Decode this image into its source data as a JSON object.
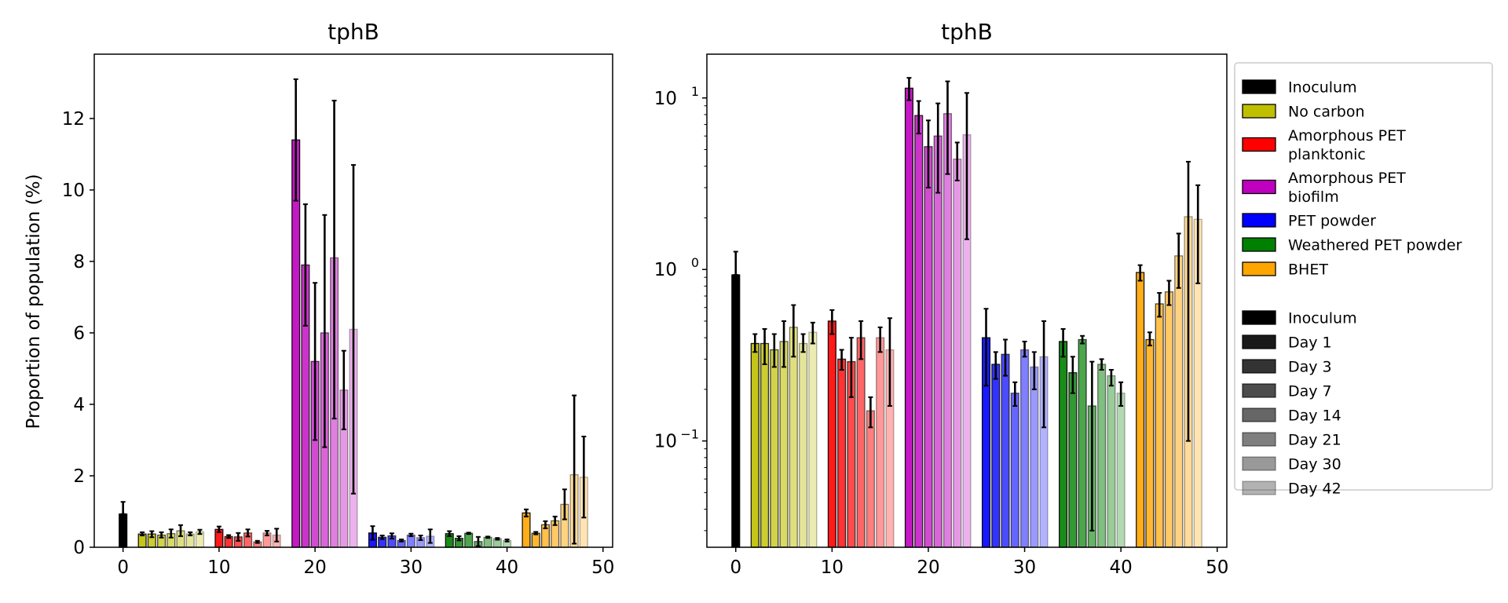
{
  "chart_data": [
    {
      "type": "bar",
      "title": "tphB",
      "xlabel": "",
      "ylabel": "Proportion of population (%)",
      "yscale": "linear",
      "xlim": [
        -3,
        51
      ],
      "ylim": [
        0,
        13.8
      ],
      "xticks": [
        0,
        10,
        20,
        30,
        40,
        50
      ],
      "xtick_labels": [
        "0",
        "10",
        "20",
        "30",
        "40",
        "50"
      ],
      "yticks": [
        0,
        2,
        4,
        6,
        8,
        10,
        12
      ],
      "ytick_labels": [
        "0",
        "2",
        "4",
        "6",
        "8",
        "10",
        "12"
      ]
    },
    {
      "type": "bar",
      "title": "tphB",
      "xlabel": "",
      "ylabel": "",
      "yscale": "log",
      "xlim": [
        -3,
        51
      ],
      "ylim": [
        0.024,
        18
      ],
      "xticks": [
        0,
        10,
        20,
        30,
        40,
        50
      ],
      "xtick_labels": [
        "0",
        "10",
        "20",
        "30",
        "40",
        "50"
      ],
      "yticks": [
        0.1,
        1,
        10
      ],
      "ytick_labels": [
        "10",
        "10",
        "10"
      ],
      "ytick_exponents": [
        "−1",
        "0",
        "1"
      ]
    }
  ],
  "series": [
    {
      "name": "Inoculum",
      "color": "#000000",
      "bars": [
        {
          "x": 0,
          "value": 0.93,
          "err_low": 0.93,
          "err_high": 1.27,
          "day": "Inoculum"
        }
      ]
    },
    {
      "name": "No carbon",
      "color": "#bfbf00",
      "bars": [
        {
          "x": 2,
          "value": 0.37,
          "err_low": 0.33,
          "err_high": 0.42,
          "day": "Day 1"
        },
        {
          "x": 3,
          "value": 0.37,
          "err_low": 0.28,
          "err_high": 0.45,
          "day": "Day 3"
        },
        {
          "x": 4,
          "value": 0.34,
          "err_low": 0.27,
          "err_high": 0.42,
          "day": "Day 7"
        },
        {
          "x": 5,
          "value": 0.38,
          "err_low": 0.27,
          "err_high": 0.5,
          "day": "Day 14"
        },
        {
          "x": 6,
          "value": 0.46,
          "err_low": 0.31,
          "err_high": 0.62,
          "day": "Day 21"
        },
        {
          "x": 7,
          "value": 0.37,
          "err_low": 0.33,
          "err_high": 0.42,
          "day": "Day 30"
        },
        {
          "x": 8,
          "value": 0.43,
          "err_low": 0.37,
          "err_high": 0.49,
          "day": "Day 42"
        }
      ]
    },
    {
      "name": "Amorphous PET planktonic",
      "color": "#ff0000",
      "bars": [
        {
          "x": 10,
          "value": 0.5,
          "err_low": 0.42,
          "err_high": 0.58,
          "day": "Day 1"
        },
        {
          "x": 11,
          "value": 0.3,
          "err_low": 0.26,
          "err_high": 0.34,
          "day": "Day 3"
        },
        {
          "x": 12,
          "value": 0.29,
          "err_low": 0.18,
          "err_high": 0.4,
          "day": "Day 7"
        },
        {
          "x": 13,
          "value": 0.4,
          "err_low": 0.3,
          "err_high": 0.5,
          "day": "Day 14"
        },
        {
          "x": 14,
          "value": 0.15,
          "err_low": 0.12,
          "err_high": 0.18,
          "day": "Day 21"
        },
        {
          "x": 15,
          "value": 0.4,
          "err_low": 0.33,
          "err_high": 0.46,
          "day": "Day 30"
        },
        {
          "x": 16,
          "value": 0.34,
          "err_low": 0.16,
          "err_high": 0.52,
          "day": "Day 42"
        }
      ]
    },
    {
      "name": "Amorphous PET biofilm",
      "color": "#bf00bf",
      "bars": [
        {
          "x": 18,
          "value": 11.4,
          "err_low": 9.7,
          "err_high": 13.1,
          "day": "Day 1"
        },
        {
          "x": 19,
          "value": 7.9,
          "err_low": 6.2,
          "err_high": 9.6,
          "day": "Day 3"
        },
        {
          "x": 20,
          "value": 5.2,
          "err_low": 3.0,
          "err_high": 7.4,
          "day": "Day 7"
        },
        {
          "x": 21,
          "value": 6.0,
          "err_low": 2.8,
          "err_high": 9.3,
          "day": "Day 14"
        },
        {
          "x": 22,
          "value": 8.1,
          "err_low": 3.6,
          "err_high": 12.5,
          "day": "Day 21"
        },
        {
          "x": 23,
          "value": 4.4,
          "err_low": 3.3,
          "err_high": 5.5,
          "day": "Day 30"
        },
        {
          "x": 24,
          "value": 6.1,
          "err_low": 1.5,
          "err_high": 10.7,
          "day": "Day 42"
        }
      ]
    },
    {
      "name": "PET powder",
      "color": "#0000ff",
      "bars": [
        {
          "x": 26,
          "value": 0.4,
          "err_low": 0.21,
          "err_high": 0.59,
          "day": "Day 1"
        },
        {
          "x": 27,
          "value": 0.28,
          "err_low": 0.23,
          "err_high": 0.33,
          "day": "Day 3"
        },
        {
          "x": 28,
          "value": 0.32,
          "err_low": 0.24,
          "err_high": 0.39,
          "day": "Day 7"
        },
        {
          "x": 29,
          "value": 0.19,
          "err_low": 0.16,
          "err_high": 0.22,
          "day": "Day 14"
        },
        {
          "x": 30,
          "value": 0.34,
          "err_low": 0.31,
          "err_high": 0.38,
          "day": "Day 21"
        },
        {
          "x": 31,
          "value": 0.27,
          "err_low": 0.2,
          "err_high": 0.33,
          "day": "Day 30"
        },
        {
          "x": 32,
          "value": 0.31,
          "err_low": 0.12,
          "err_high": 0.5,
          "day": "Day 42"
        }
      ]
    },
    {
      "name": "Weathered PET powder",
      "color": "#008000",
      "bars": [
        {
          "x": 34,
          "value": 0.38,
          "err_low": 0.31,
          "err_high": 0.45,
          "day": "Day 1"
        },
        {
          "x": 35,
          "value": 0.25,
          "err_low": 0.19,
          "err_high": 0.31,
          "day": "Day 3"
        },
        {
          "x": 36,
          "value": 0.39,
          "err_low": 0.37,
          "err_high": 0.41,
          "day": "Day 7"
        },
        {
          "x": 37,
          "value": 0.16,
          "err_low": 0.03,
          "err_high": 0.29,
          "day": "Day 14"
        },
        {
          "x": 38,
          "value": 0.28,
          "err_low": 0.26,
          "err_high": 0.3,
          "day": "Day 21"
        },
        {
          "x": 39,
          "value": 0.24,
          "err_low": 0.21,
          "err_high": 0.26,
          "day": "Day 30"
        },
        {
          "x": 40,
          "value": 0.19,
          "err_low": 0.16,
          "err_high": 0.22,
          "day": "Day 42"
        }
      ]
    },
    {
      "name": "BHET",
      "color": "#ffa500",
      "bars": [
        {
          "x": 42,
          "value": 0.96,
          "err_low": 0.86,
          "err_high": 1.06,
          "day": "Day 1"
        },
        {
          "x": 43,
          "value": 0.39,
          "err_low": 0.36,
          "err_high": 0.43,
          "day": "Day 3"
        },
        {
          "x": 44,
          "value": 0.63,
          "err_low": 0.53,
          "err_high": 0.73,
          "day": "Day 7"
        },
        {
          "x": 45,
          "value": 0.74,
          "err_low": 0.62,
          "err_high": 0.86,
          "day": "Day 14"
        },
        {
          "x": 46,
          "value": 1.2,
          "err_low": 0.78,
          "err_high": 1.62,
          "day": "Day 21"
        },
        {
          "x": 47,
          "value": 2.03,
          "err_low": 0.1,
          "err_high": 4.25,
          "day": "Day 30"
        },
        {
          "x": 48,
          "value": 1.96,
          "err_low": 0.83,
          "err_high": 3.1,
          "day": "Day 42"
        }
      ]
    }
  ],
  "legend": {
    "position": "right",
    "groups": [
      {
        "label": "Inoculum",
        "color": "#000000"
      },
      {
        "label": "No carbon",
        "color": "#bfbf00"
      },
      {
        "label": "Amorphous PET planktonic",
        "lines": [
          "Amorphous PET",
          "planktonic"
        ],
        "color": "#ff0000"
      },
      {
        "label": "Amorphous PET biofilm",
        "lines": [
          "Amorphous PET",
          "biofilm"
        ],
        "color": "#bf00bf"
      },
      {
        "label": "PET powder",
        "color": "#0000ff"
      },
      {
        "label": "Weathered PET powder",
        "color": "#008000"
      },
      {
        "label": "BHET",
        "color": "#ffa500"
      }
    ],
    "days": [
      {
        "label": "Inoculum",
        "alpha": 1.0
      },
      {
        "label": "Day 1",
        "alpha": 0.9
      },
      {
        "label": "Day 3",
        "alpha": 0.8
      },
      {
        "label": "Day 7",
        "alpha": 0.7
      },
      {
        "label": "Day 14",
        "alpha": 0.6
      },
      {
        "label": "Day 21",
        "alpha": 0.5
      },
      {
        "label": "Day 30",
        "alpha": 0.4
      },
      {
        "label": "Day 42",
        "alpha": 0.3
      }
    ]
  }
}
